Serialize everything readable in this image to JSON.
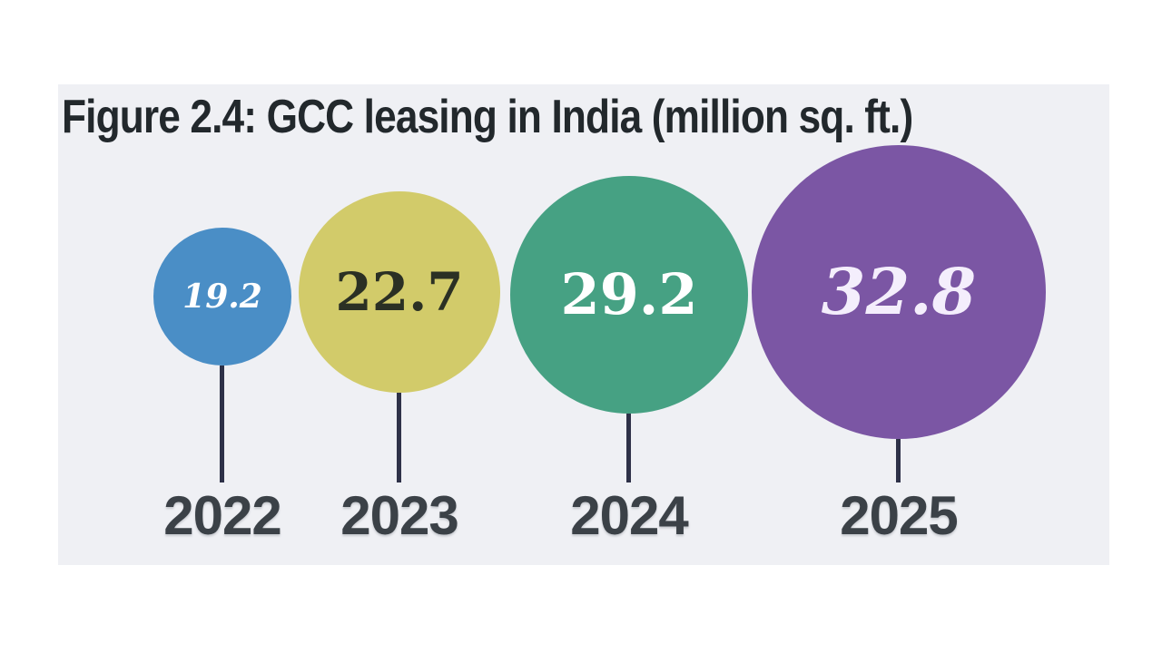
{
  "figure_title": "Figure 2.4: GCC leasing in India (million sq. ft.)",
  "chart_data": {
    "type": "bubble",
    "title": "Figure 2.4: GCC leasing in India (million sq. ft.)",
    "unit": "million sq. ft.",
    "categories": [
      "2022",
      "2023",
      "2024",
      "2025"
    ],
    "values": [
      19.2,
      22.7,
      29.2,
      32.8
    ],
    "value_labels": [
      "19.2",
      "22.7",
      "29.2",
      "32.8"
    ],
    "bubble_colors": [
      "#4a8ec6",
      "#d2cb6a",
      "#46a183",
      "#7b56a4"
    ],
    "value_text_colors": [
      "#ffffff",
      "#2b3024",
      "#ffffff",
      "#ffffff"
    ],
    "stem_color": "#2e3148",
    "panel_background": "#eff0f4",
    "layout": "proportional bubbles in a row, stems pointing down to year labels, no axes, no gridlines, no legend"
  }
}
